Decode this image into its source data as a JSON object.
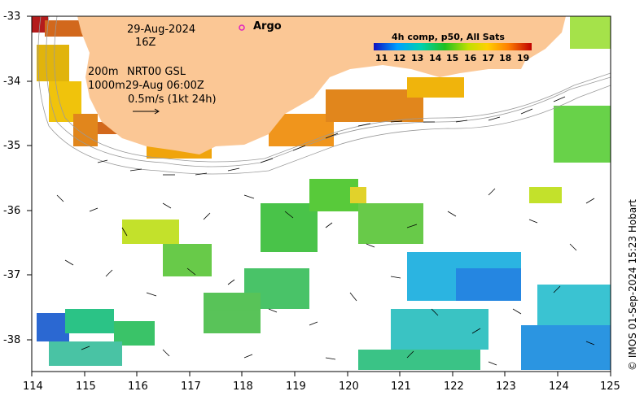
{
  "header": {
    "date": "29-Aug-2024",
    "hour": "16Z",
    "contour_shallow": "200m",
    "contour_deep": "1000m",
    "product": "NRT00 GSL",
    "altimetry_time": "29-Aug 06:00Z",
    "scale_label": "0.5m/s (1kt 24h)"
  },
  "legend": {
    "argo_label": "Argo",
    "argo_color": "#e020c0",
    "colorbar_title": "4h comp, p50, All Sats",
    "colorbar_ticks": [
      "11",
      "12",
      "13",
      "14",
      "15",
      "16",
      "17",
      "18",
      "19"
    ]
  },
  "axes": {
    "x_ticks": [
      "114",
      "115",
      "116",
      "117",
      "118",
      "119",
      "120",
      "121",
      "122",
      "123",
      "124",
      "125"
    ],
    "y_ticks": [
      "-33",
      "-34",
      "-35",
      "-36",
      "-37",
      "-38"
    ],
    "lon_range": [
      114,
      125
    ],
    "lat_range": [
      -38.5,
      -33
    ]
  },
  "credit": "© IMOS 01-Sep-2024 15:23 Hobart",
  "colors": {
    "land": "#fbc795",
    "sst_min": "#1010c0",
    "sst_max": "#c00000"
  }
}
